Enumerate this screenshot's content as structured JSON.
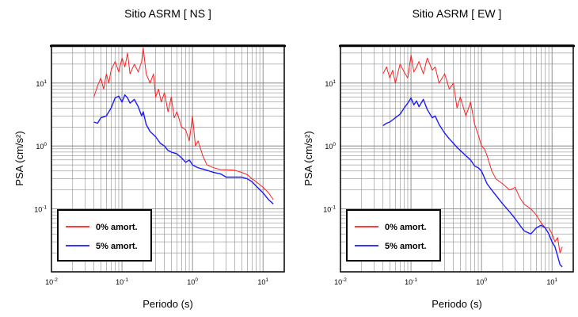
{
  "chart_data": [
    {
      "type": "line",
      "title": "Sitio ASRM [ NS ]",
      "xlabel": "Periodo (s)",
      "ylabel": "PSA (cm/s²)",
      "x_scale": "log",
      "y_scale": "log",
      "xlim": [
        0.01,
        20
      ],
      "ylim": [
        0.01,
        40
      ],
      "x_ticks": [
        {
          "base": "10",
          "exp": "-2"
        },
        {
          "base": "10",
          "exp": "-1"
        },
        {
          "base": "10",
          "exp": "0"
        },
        {
          "base": "10",
          "exp": "1"
        }
      ],
      "y_ticks": [
        {
          "base": "10",
          "exp": "-1"
        },
        {
          "base": "10",
          "exp": "0"
        },
        {
          "base": "10",
          "exp": "1"
        }
      ],
      "grid": true,
      "legend_position": "bottom-left",
      "series": [
        {
          "name": "0% amort.",
          "color": "#ff2020",
          "x": [
            0.04,
            0.045,
            0.05,
            0.055,
            0.06,
            0.065,
            0.07,
            0.08,
            0.09,
            0.1,
            0.11,
            0.12,
            0.13,
            0.15,
            0.17,
            0.19,
            0.2,
            0.22,
            0.25,
            0.28,
            0.3,
            0.33,
            0.36,
            0.4,
            0.45,
            0.5,
            0.55,
            0.6,
            0.7,
            0.8,
            0.9,
            1.0,
            1.1,
            1.2,
            1.4,
            1.6,
            2.0,
            2.5,
            3.0,
            4.0,
            5.0,
            6.0,
            7.0,
            8.0,
            10.0,
            12.0,
            14.0
          ],
          "y": [
            6.0,
            9.0,
            12.0,
            8.0,
            14.0,
            10.0,
            16.0,
            22.0,
            15.0,
            25.0,
            18.0,
            30.0,
            14.0,
            20.0,
            15.0,
            22.0,
            36.0,
            14.0,
            10.0,
            14.0,
            6.0,
            8.0,
            5.0,
            7.0,
            3.5,
            6.0,
            2.8,
            3.5,
            2.0,
            1.8,
            1.2,
            3.0,
            1.0,
            1.2,
            0.7,
            0.5,
            0.45,
            0.42,
            0.42,
            0.41,
            0.38,
            0.35,
            0.3,
            0.27,
            0.22,
            0.18,
            0.14
          ]
        },
        {
          "name": "5% amort.",
          "color": "#1a1aff",
          "x": [
            0.04,
            0.045,
            0.05,
            0.06,
            0.07,
            0.08,
            0.09,
            0.1,
            0.11,
            0.12,
            0.13,
            0.15,
            0.17,
            0.19,
            0.2,
            0.22,
            0.25,
            0.3,
            0.35,
            0.4,
            0.45,
            0.5,
            0.6,
            0.7,
            0.8,
            0.9,
            1.0,
            1.2,
            1.5,
            2.0,
            2.5,
            3.0,
            4.0,
            5.0,
            6.0,
            7.0,
            8.0,
            10.0,
            12.0,
            14.0
          ],
          "y": [
            2.4,
            2.3,
            2.8,
            3.0,
            4.0,
            5.8,
            6.2,
            5.0,
            6.5,
            5.8,
            4.8,
            5.5,
            4.2,
            3.0,
            3.5,
            2.2,
            1.7,
            1.4,
            1.1,
            1.0,
            0.85,
            0.8,
            0.75,
            0.65,
            0.55,
            0.6,
            0.5,
            0.45,
            0.42,
            0.38,
            0.36,
            0.32,
            0.32,
            0.32,
            0.3,
            0.27,
            0.23,
            0.18,
            0.14,
            0.12
          ]
        }
      ]
    },
    {
      "type": "line",
      "title": "Sitio ASRM [ EW ]",
      "xlabel": "Periodo (s)",
      "ylabel": "PSA (cm/s²)",
      "x_scale": "log",
      "y_scale": "log",
      "xlim": [
        0.01,
        20
      ],
      "ylim": [
        0.01,
        40
      ],
      "x_ticks": [
        {
          "base": "10",
          "exp": "-2"
        },
        {
          "base": "10",
          "exp": "-1"
        },
        {
          "base": "10",
          "exp": "0"
        },
        {
          "base": "10",
          "exp": "1"
        }
      ],
      "y_ticks": [
        {
          "base": "10",
          "exp": "-1"
        },
        {
          "base": "10",
          "exp": "0"
        },
        {
          "base": "10",
          "exp": "1"
        }
      ],
      "grid": true,
      "legend_position": "bottom-left",
      "series": [
        {
          "name": "0% amort.",
          "color": "#ff2020",
          "x": [
            0.04,
            0.045,
            0.05,
            0.055,
            0.06,
            0.07,
            0.08,
            0.09,
            0.1,
            0.11,
            0.12,
            0.13,
            0.15,
            0.17,
            0.2,
            0.22,
            0.25,
            0.3,
            0.35,
            0.4,
            0.45,
            0.5,
            0.6,
            0.7,
            0.8,
            0.9,
            1.0,
            1.1,
            1.2,
            1.4,
            1.6,
            2.0,
            2.5,
            3.0,
            3.5,
            4.0,
            5.0,
            6.0,
            7.0,
            8.0,
            9.0,
            10.0,
            11.0,
            12.0,
            13.0,
            14.0
          ],
          "y": [
            14.0,
            18.0,
            12.0,
            16.0,
            10.0,
            20.0,
            15.0,
            12.0,
            28.0,
            15.0,
            18.0,
            22.0,
            14.0,
            25.0,
            16.0,
            18.0,
            10.0,
            14.0,
            8.0,
            10.0,
            4.0,
            6.0,
            3.0,
            5.0,
            2.2,
            1.5,
            1.0,
            0.9,
            0.7,
            0.4,
            0.3,
            0.25,
            0.2,
            0.22,
            0.15,
            0.12,
            0.1,
            0.08,
            0.06,
            0.05,
            0.05,
            0.04,
            0.03,
            0.035,
            0.02,
            0.025
          ]
        },
        {
          "name": "5% amort.",
          "color": "#1a1aff",
          "x": [
            0.04,
            0.045,
            0.05,
            0.06,
            0.07,
            0.08,
            0.09,
            0.1,
            0.11,
            0.12,
            0.13,
            0.15,
            0.17,
            0.2,
            0.22,
            0.25,
            0.3,
            0.35,
            0.4,
            0.45,
            0.5,
            0.6,
            0.7,
            0.8,
            0.9,
            1.0,
            1.2,
            1.5,
            2.0,
            2.5,
            3.0,
            3.5,
            4.0,
            5.0,
            6.0,
            7.0,
            8.0,
            9.0,
            10.0,
            11.0,
            12.0,
            13.0,
            14.0
          ],
          "y": [
            2.1,
            2.3,
            2.4,
            2.8,
            3.2,
            4.0,
            4.8,
            5.8,
            4.5,
            5.2,
            4.2,
            5.5,
            3.8,
            2.8,
            3.0,
            2.2,
            1.6,
            1.3,
            1.1,
            0.95,
            0.85,
            0.7,
            0.6,
            0.48,
            0.45,
            0.4,
            0.25,
            0.18,
            0.12,
            0.09,
            0.07,
            0.055,
            0.045,
            0.04,
            0.05,
            0.055,
            0.05,
            0.04,
            0.03,
            0.025,
            0.018,
            0.013,
            0.012
          ]
        }
      ]
    }
  ]
}
